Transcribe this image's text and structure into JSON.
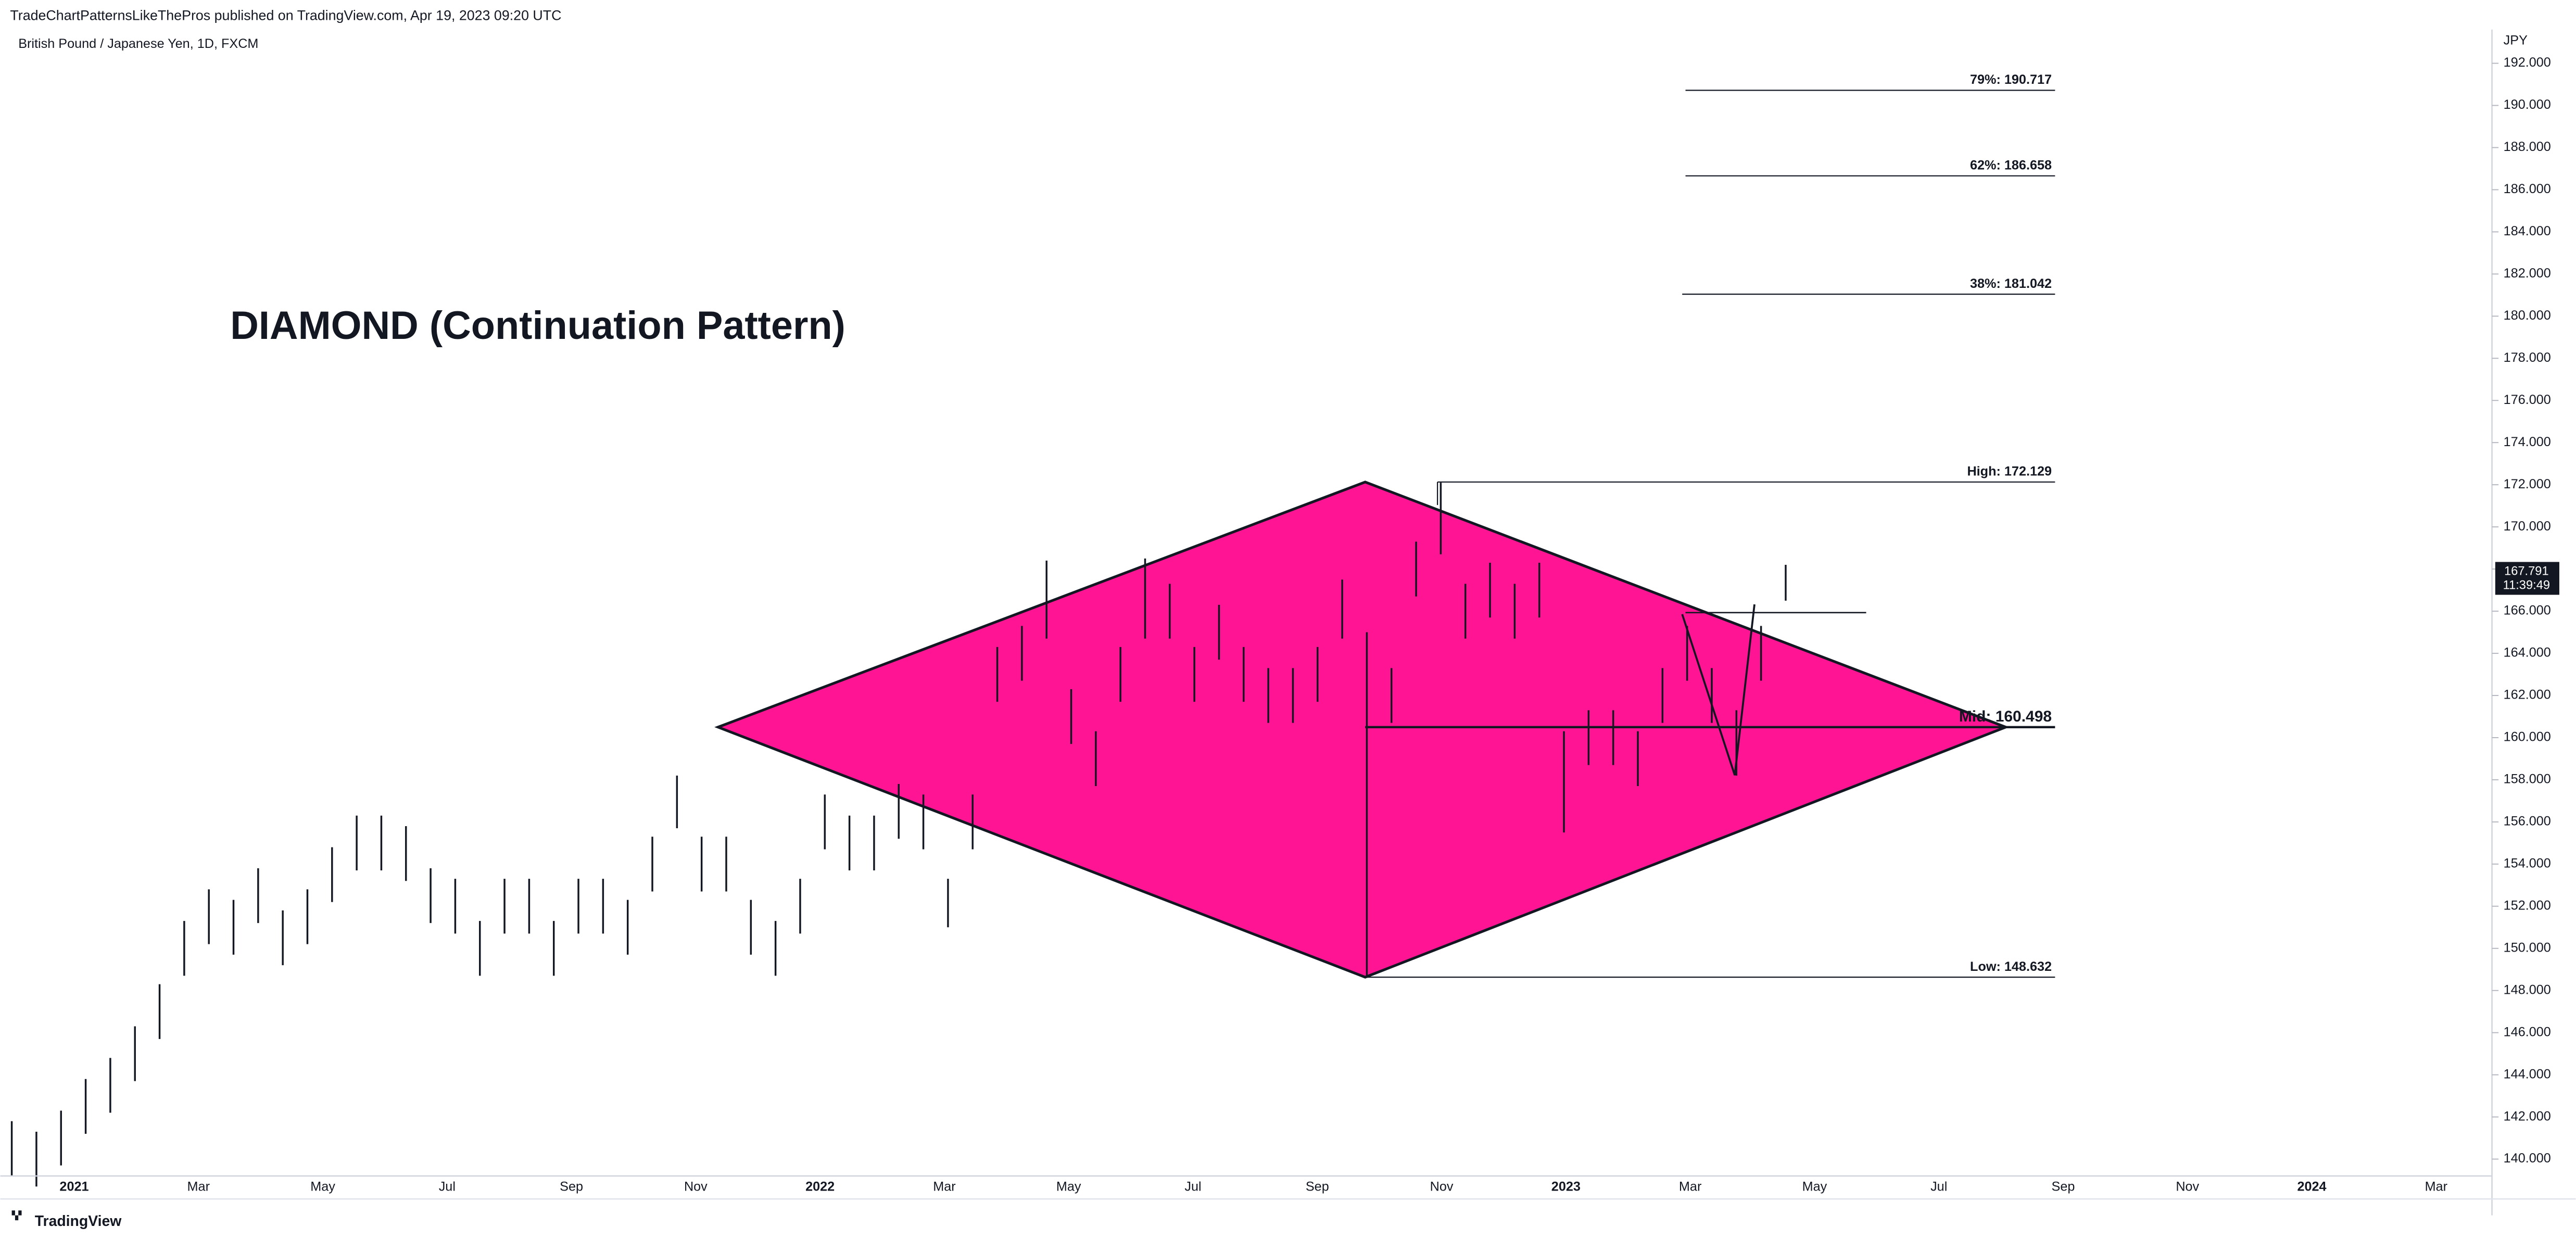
{
  "header": {
    "published": "TradeChartPatternsLikeThePros published on TradingView.com, Apr 19, 2023 09:20 UTC",
    "symbol": "British Pound / Japanese Yen, 1D, FXCM",
    "brand": "TradingView"
  },
  "chart_data": {
    "type": "ohlc",
    "title": "DIAMOND (Continuation Pattern)",
    "currency": "JPY",
    "color": "#131722",
    "pattern_color": "#ff1493",
    "categories": [
      "2021",
      "Mar",
      "May",
      "Jul",
      "Sep",
      "Nov",
      "2022",
      "Mar",
      "May",
      "Jul",
      "Sep",
      "Nov",
      "2023",
      "Mar",
      "May",
      "Jul",
      "Sep",
      "Nov",
      "2024",
      "Mar"
    ],
    "series": {
      "high": [
        141.8,
        141.3,
        142.3,
        143.8,
        144.8,
        146.3,
        148.3,
        151.3,
        152.8,
        152.3,
        153.8,
        151.8,
        152.8,
        154.8,
        156.3,
        156.3,
        155.8,
        153.8,
        153.3,
        151.3,
        153.3,
        153.3,
        151.3,
        153.3,
        153.3,
        152.3,
        155.3,
        158.2,
        155.3,
        155.3,
        152.3,
        151.3,
        153.3,
        157.3,
        156.3,
        156.3,
        157.8,
        157.3,
        153.3,
        157.3,
        164.3,
        165.3,
        168.4,
        162.3,
        160.3,
        164.3,
        168.5,
        167.3,
        164.3,
        166.3,
        164.3,
        163.3,
        163.3,
        164.3,
        167.5,
        165,
        163.3,
        169.3,
        172.1,
        167.3,
        168.3,
        167.3,
        168.3,
        160.3,
        161.3,
        161.3,
        160.3,
        163.3,
        165.3,
        163.3,
        161.3,
        165.3,
        168.2
      ],
      "low": [
        139.2,
        138.7,
        139.7,
        141.2,
        142.2,
        143.7,
        145.7,
        148.7,
        150.2,
        149.7,
        151.2,
        149.2,
        150.2,
        152.2,
        153.7,
        153.7,
        153.2,
        151.2,
        150.7,
        148.7,
        150.7,
        150.7,
        148.7,
        150.7,
        150.7,
        149.7,
        152.7,
        155.7,
        152.7,
        152.7,
        149.7,
        148.7,
        150.7,
        154.7,
        153.7,
        153.7,
        155.2,
        154.7,
        151,
        154.7,
        161.7,
        162.7,
        164.7,
        159.7,
        157.7,
        161.7,
        164.7,
        164.7,
        161.7,
        163.7,
        161.7,
        160.7,
        160.7,
        161.7,
        164.7,
        148.6,
        160.7,
        166.7,
        168.7,
        164.7,
        165.7,
        164.7,
        165.7,
        155.5,
        158.7,
        158.7,
        157.7,
        160.7,
        162.7,
        160.7,
        158.2,
        162.7,
        166.5
      ]
    },
    "levels": [
      {
        "name": "79%",
        "value": 190.717,
        "label": "79%: 190.717"
      },
      {
        "name": "62%",
        "value": 186.658,
        "label": "62%: 186.658"
      },
      {
        "name": "38%",
        "value": 181.042,
        "label": "38%: 181.042"
      },
      {
        "name": "High",
        "value": 172.129,
        "label": "High: 172.129"
      },
      {
        "name": "Mid",
        "value": 160.498,
        "label": "Mid: 160.498"
      },
      {
        "name": "Low",
        "value": 148.632,
        "label": "Low: 148.632"
      }
    ],
    "last_price": 167.791,
    "countdown": "11:39:49",
    "ylim": [
      139.2,
      193.6
    ],
    "yticks": [
      {
        "value": 140,
        "label": "140.000"
      },
      {
        "value": 142,
        "label": "142.000"
      },
      {
        "value": 144,
        "label": "144.000"
      },
      {
        "value": 146,
        "label": "146.000"
      },
      {
        "value": 148,
        "label": "148.000"
      },
      {
        "value": 150,
        "label": "150.000"
      },
      {
        "value": 152,
        "label": "152.000"
      },
      {
        "value": 154,
        "label": "154.000"
      },
      {
        "value": 156,
        "label": "156.000"
      },
      {
        "value": 158,
        "label": "158.000"
      },
      {
        "value": 160,
        "label": "160.000"
      },
      {
        "value": 162,
        "label": "162.000"
      },
      {
        "value": 164,
        "label": "164.000"
      },
      {
        "value": 166,
        "label": "166.000"
      },
      {
        "value": 168,
        "label": "168.000"
      },
      {
        "value": 170,
        "label": "170.000"
      },
      {
        "value": 172,
        "label": "172.000"
      },
      {
        "value": 174,
        "label": "174.000"
      },
      {
        "value": 176,
        "label": "176.000"
      },
      {
        "value": 178,
        "label": "178.000"
      },
      {
        "value": 180,
        "label": "180.000"
      },
      {
        "value": 182,
        "label": "182.000"
      },
      {
        "value": 184,
        "label": "184.000"
      },
      {
        "value": 186,
        "label": "186.000"
      },
      {
        "value": 188,
        "label": "188.000"
      },
      {
        "value": 190,
        "label": "190.000"
      },
      {
        "value": 192,
        "label": "192.000"
      }
    ]
  }
}
